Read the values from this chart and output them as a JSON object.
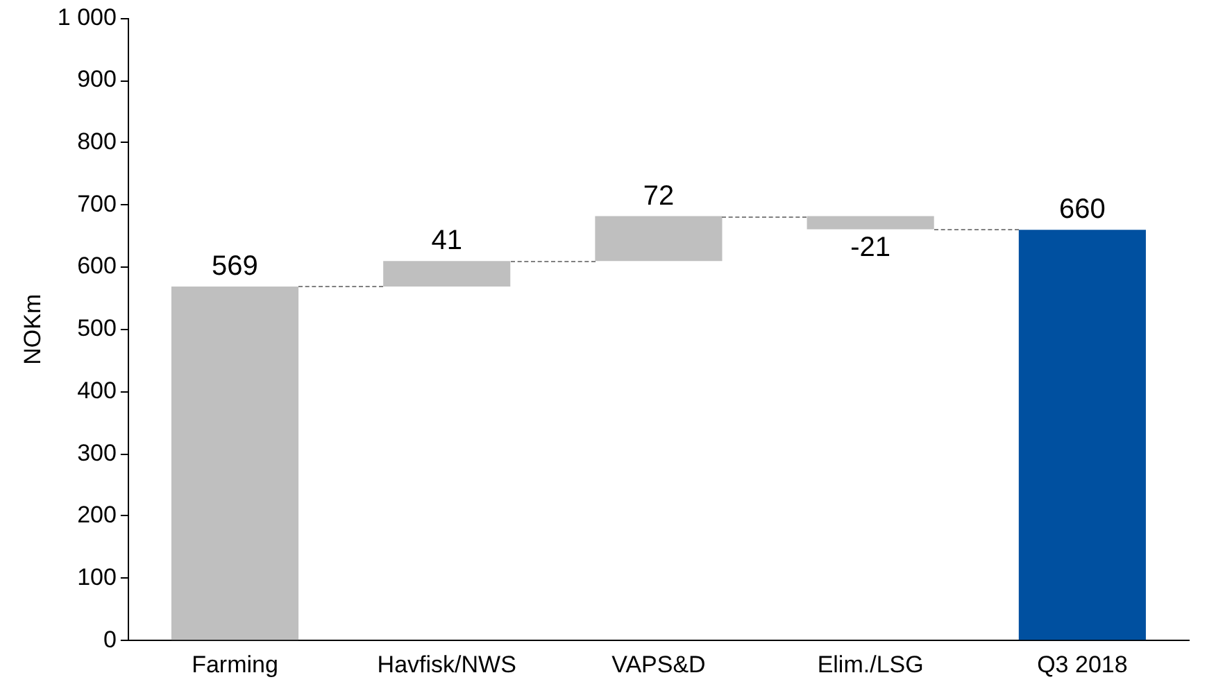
{
  "chart_data": {
    "type": "bar",
    "ylabel": "NOKm",
    "categories": [
      "Farming",
      "Havfisk/NWS",
      "VAPS&D",
      "Elim./LSG",
      "Q3 2018"
    ],
    "values": [
      569,
      41,
      72,
      -21,
      660
    ],
    "base": [
      0,
      569,
      610,
      682,
      0
    ],
    "colors": [
      "#bfbfbf",
      "#bfbfbf",
      "#bfbfbf",
      "#bfbfbf",
      "#0050a0"
    ],
    "ylim": [
      0,
      1000
    ],
    "yticks": [
      0,
      100,
      200,
      300,
      400,
      500,
      600,
      700,
      800,
      900,
      {
        "value": 1000,
        "label": "1 000"
      }
    ],
    "data_labels": true,
    "grid": false,
    "legend": false
  }
}
